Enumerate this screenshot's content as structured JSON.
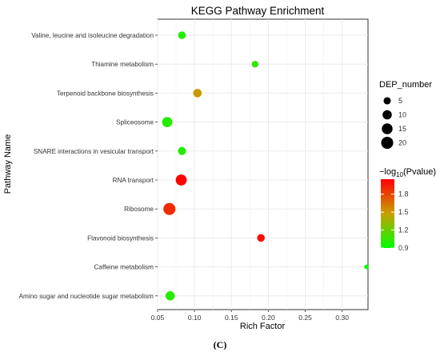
{
  "chart_data": {
    "type": "scatter",
    "title": "KEGG Pathway Enrichment",
    "xlabel": "Rich Factor",
    "ylabel": "Pathway Name",
    "xlim": [
      0.05,
      0.335
    ],
    "xticks": [
      "0.05",
      "0.10",
      "0.15",
      "0.20",
      "0.25",
      "0.30"
    ],
    "grid": true,
    "categories": [
      "Valine, leucine and isoleucine degradation",
      "Thiamine metabolism",
      "Terpenoid backbone biosynthesis",
      "Spliceosome",
      "SNARE interactions in vesicular transport",
      "RNA transport",
      "Ribosome",
      "Flavonoid biosynthesis",
      "Caffeine metabolism",
      "Amino sugar and nucleotide sugar metabolism"
    ],
    "points": [
      {
        "pathway": "Valine, leucine and isoleucine degradation",
        "rich_factor": 0.083,
        "dep_number": 6,
        "neg_log10_p": 1.0
      },
      {
        "pathway": "Thiamine metabolism",
        "rich_factor": 0.182,
        "dep_number": 4,
        "neg_log10_p": 1.05
      },
      {
        "pathway": "Terpenoid backbone biosynthesis",
        "rich_factor": 0.104,
        "dep_number": 8,
        "neg_log10_p": 1.5
      },
      {
        "pathway": "Spliceosome",
        "rich_factor": 0.063,
        "dep_number": 13,
        "neg_log10_p": 1.0
      },
      {
        "pathway": "SNARE interactions in vesicular transport",
        "rich_factor": 0.083,
        "dep_number": 7,
        "neg_log10_p": 1.0
      },
      {
        "pathway": "RNA transport",
        "rich_factor": 0.082,
        "dep_number": 16,
        "neg_log10_p": 2.05
      },
      {
        "pathway": "Ribosome",
        "rich_factor": 0.066,
        "dep_number": 20,
        "neg_log10_p": 1.9
      },
      {
        "pathway": "Flavonoid biosynthesis",
        "rich_factor": 0.19,
        "dep_number": 6,
        "neg_log10_p": 2.0
      },
      {
        "pathway": "Caffeine metabolism",
        "rich_factor": 0.333,
        "dep_number": 1,
        "neg_log10_p": 0.9
      },
      {
        "pathway": "Amino sugar and nucleotide sugar metabolism",
        "rich_factor": 0.067,
        "dep_number": 10,
        "neg_log10_p": 1.0
      }
    ],
    "size_legend": {
      "title": "DEP_number",
      "entries": [
        5,
        10,
        15,
        20
      ]
    },
    "color_legend": {
      "title_prefix": "−log",
      "title_sub": "10",
      "title_suffix": "(Pvalue)",
      "ticks": [
        "1.8",
        "1.5",
        "1.2",
        "0.9"
      ],
      "tick_values": [
        1.8,
        1.5,
        1.2,
        0.9
      ],
      "range": [
        0.9,
        2.05
      ],
      "low_color": "#00ff00",
      "mid_color": "#c8a000",
      "high_color": "#ff0000"
    },
    "legend_position": "right"
  },
  "caption": "(C)"
}
